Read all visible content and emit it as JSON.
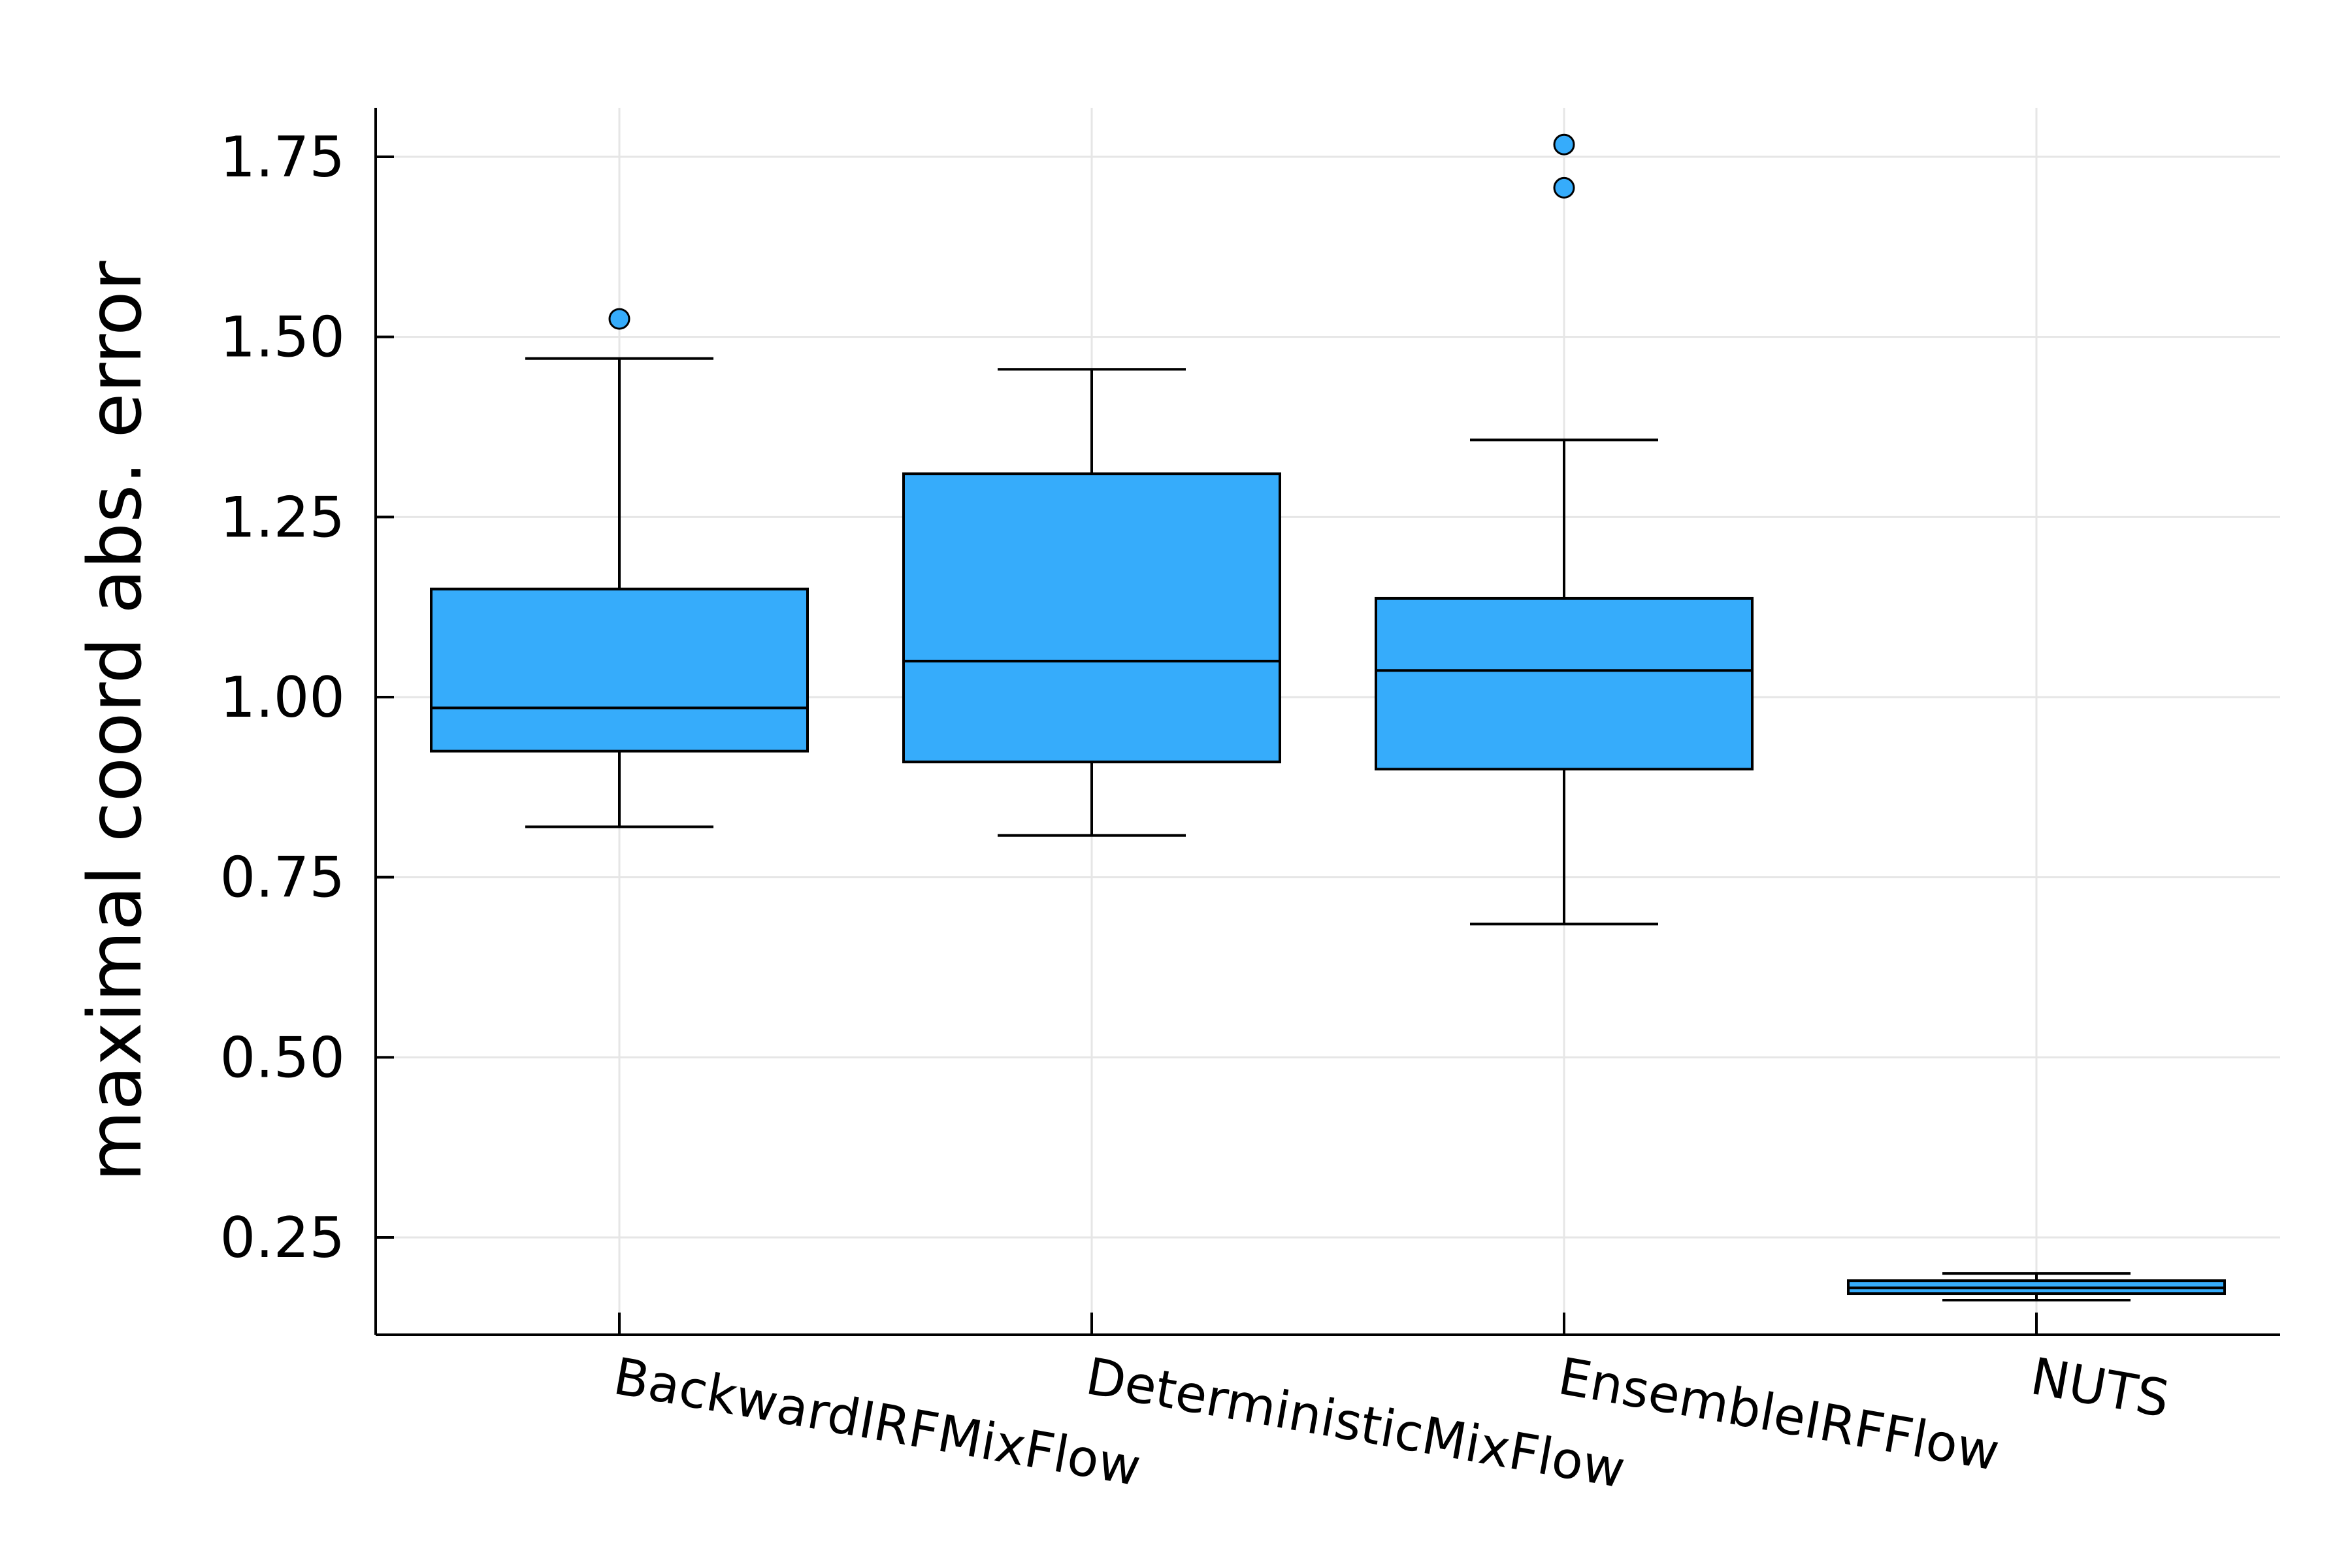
{
  "chart_data": {
    "type": "box",
    "ylabel": "maximal coord abs. error",
    "xlabel": "",
    "title": "",
    "ylim": [
      0.12,
      1.82
    ],
    "yticks": [
      {
        "value": 0.25,
        "label": "0.25"
      },
      {
        "value": 0.5,
        "label": "0.50"
      },
      {
        "value": 0.75,
        "label": "0.75"
      },
      {
        "value": 1.0,
        "label": "1.00"
      },
      {
        "value": 1.25,
        "label": "1.25"
      },
      {
        "value": 1.5,
        "label": "1.50"
      },
      {
        "value": 1.75,
        "label": "1.75"
      }
    ],
    "grid": true,
    "legend": "none",
    "color": "#36acfb",
    "categories": [
      "BackwardIRFMixFlow",
      "DeterministicMixFlow",
      "EnsembleIRFFlow",
      "NUTS"
    ],
    "boxes": [
      {
        "category": "BackwardIRFMixFlow",
        "whisker_low": 0.82,
        "q1": 0.925,
        "median": 0.985,
        "q3": 1.15,
        "whisker_high": 1.47,
        "outliers": [
          1.525
        ]
      },
      {
        "category": "DeterministicMixFlow",
        "whisker_low": 0.808,
        "q1": 0.91,
        "median": 1.05,
        "q3": 1.31,
        "whisker_high": 1.455,
        "outliers": []
      },
      {
        "category": "EnsembleIRFFlow",
        "whisker_low": 0.685,
        "q1": 0.9,
        "median": 1.037,
        "q3": 1.137,
        "whisker_high": 1.357,
        "outliers": [
          1.707,
          1.767
        ]
      },
      {
        "category": "NUTS",
        "whisker_low": 0.163,
        "q1": 0.172,
        "median": 0.18,
        "q3": 0.19,
        "whisker_high": 0.2,
        "outliers": []
      }
    ]
  }
}
